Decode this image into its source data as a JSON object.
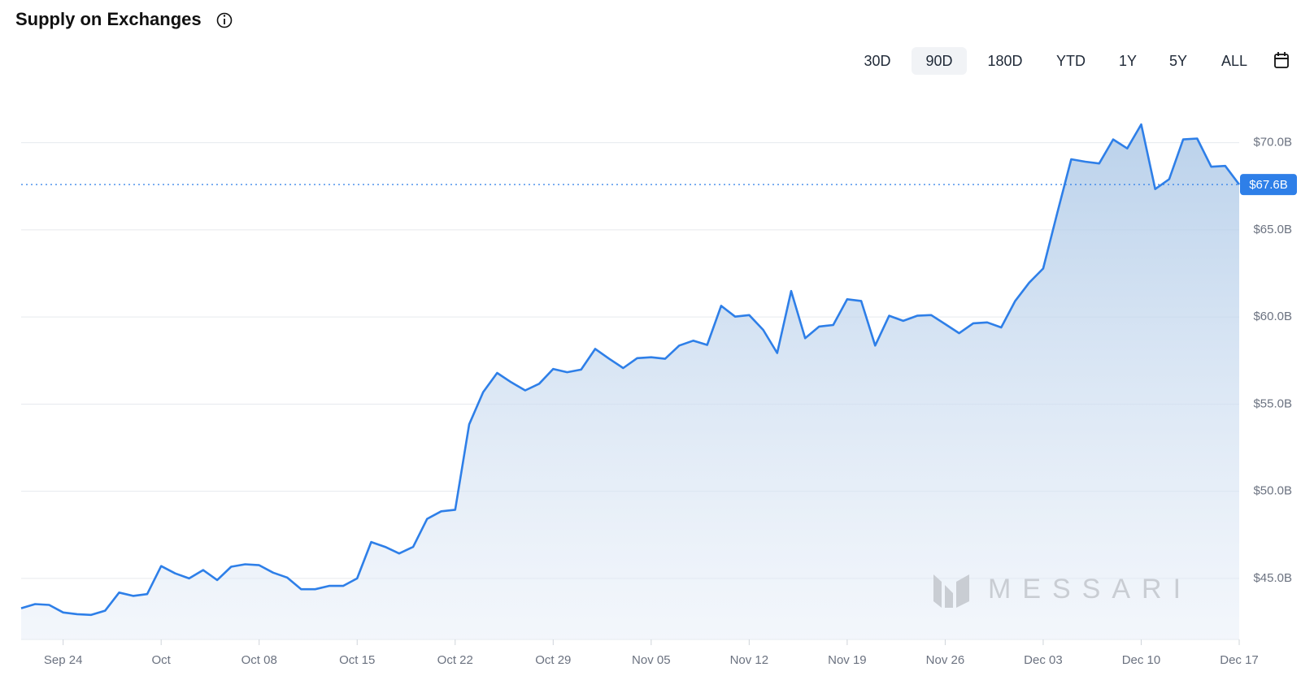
{
  "chart_data": {
    "type": "area",
    "title": "Supply on Exchanges",
    "x": [
      null,
      null,
      null,
      "Sep 24",
      null,
      null,
      null,
      null,
      null,
      null,
      "Oct",
      null,
      null,
      null,
      null,
      null,
      null,
      "Oct 08",
      null,
      null,
      null,
      null,
      null,
      null,
      "Oct 15",
      null,
      null,
      null,
      null,
      null,
      null,
      "Oct 22",
      null,
      null,
      null,
      null,
      null,
      null,
      "Oct 29",
      null,
      null,
      null,
      null,
      null,
      null,
      "Nov 05",
      null,
      null,
      null,
      null,
      null,
      null,
      "Nov 12",
      null,
      null,
      null,
      null,
      null,
      null,
      "Nov 19",
      null,
      null,
      null,
      null,
      null,
      null,
      "Nov 26",
      null,
      null,
      null,
      null,
      null,
      null,
      "Dec 03",
      null,
      null,
      null,
      null,
      null,
      null,
      "Dec 10",
      null,
      null,
      null,
      null,
      null,
      null,
      "Dec 17"
    ],
    "series": [
      {
        "color": "#2e7fe8",
        "values": [
          43.29,
          43.53,
          43.48,
          43.05,
          42.95,
          42.91,
          43.15,
          44.19,
          44.0,
          44.1,
          45.71,
          45.29,
          45.0,
          45.48,
          44.91,
          45.67,
          45.81,
          45.76,
          45.33,
          45.05,
          44.38,
          44.38,
          44.57,
          44.57,
          45.0,
          47.09,
          46.81,
          46.43,
          46.81,
          48.42,
          48.85,
          48.94,
          53.84,
          55.69,
          56.79,
          56.26,
          55.79,
          56.17,
          57.02,
          56.83,
          56.98,
          58.17,
          57.6,
          57.07,
          57.64,
          57.69,
          57.6,
          58.36,
          58.64,
          58.4,
          60.64,
          60.02,
          60.11,
          59.26,
          57.93,
          61.49,
          58.78,
          59.45,
          59.54,
          61.02,
          60.92,
          58.36,
          60.07,
          59.78,
          60.07,
          60.11,
          59.59,
          59.07,
          59.64,
          59.69,
          59.4,
          60.92,
          61.97,
          62.78,
          65.96,
          69.05,
          68.91,
          68.81,
          70.19,
          69.67,
          71.05,
          67.34,
          67.91,
          70.19,
          70.24,
          68.62,
          68.67,
          67.6
        ]
      }
    ],
    "current_value_label": "$67.6B",
    "ylim": [
      41.5,
      72.5
    ],
    "yticks": [
      {
        "value": 45,
        "label": "$45.0B"
      },
      {
        "value": 50,
        "label": "$50.0B"
      },
      {
        "value": 55,
        "label": "$55.0B"
      },
      {
        "value": 60,
        "label": "$60.0B"
      },
      {
        "value": 65,
        "label": "$65.0B"
      },
      {
        "value": 70,
        "label": "$70.0B"
      }
    ],
    "grid": true,
    "watermark": "MESSARI"
  },
  "controls": {
    "ranges": [
      "30D",
      "90D",
      "180D",
      "YTD",
      "1Y",
      "5Y",
      "ALL"
    ],
    "selected": "90D"
  }
}
